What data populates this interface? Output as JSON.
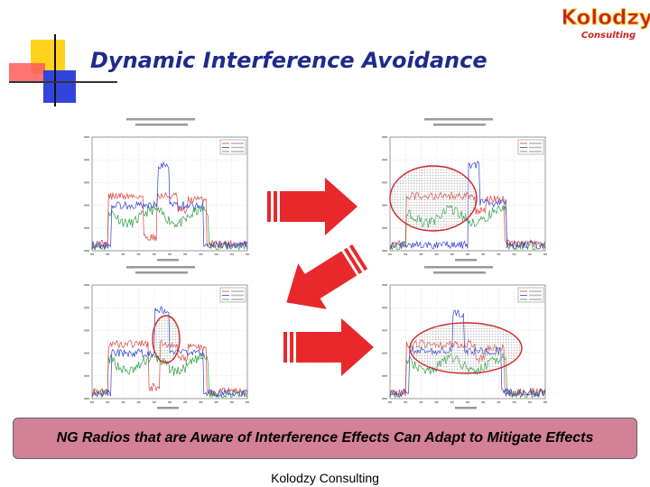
{
  "slide": {
    "title": "Dynamic Interference Avoidance",
    "callout": "NG Radios that are Aware of Interference Effects Can Adapt to Mitigate Effects",
    "footer": "Kolodzy Consulting"
  },
  "logo": {
    "line1": "Kolodzy",
    "line2": "Consulting",
    "fill_color": "#cc2222",
    "outline_color": "#f4d020"
  },
  "colors": {
    "title": "#1e2a8c",
    "callout_bg": "#d28196",
    "arrow_red": "#e8282a",
    "trace_red": "#e0403a",
    "trace_blue": "#2c3fd0",
    "trace_green": "#2aa040",
    "highlight_red": "#cc2a2a",
    "accent_yellow": "#ffd21f",
    "accent_blue": "#3344dd",
    "accent_red": "#ff5a5a"
  },
  "figures": [
    {
      "id": "top-left",
      "highlight": "none"
    },
    {
      "id": "top-right",
      "highlight": "wide-left"
    },
    {
      "id": "bottom-left",
      "highlight": "narrow-center"
    },
    {
      "id": "bottom-right",
      "highlight": "wide-center"
    }
  ],
  "arrows": [
    {
      "id": "top",
      "direction": "right"
    },
    {
      "id": "middle",
      "direction": "down-left"
    },
    {
      "id": "bottom",
      "direction": "right"
    }
  ]
}
